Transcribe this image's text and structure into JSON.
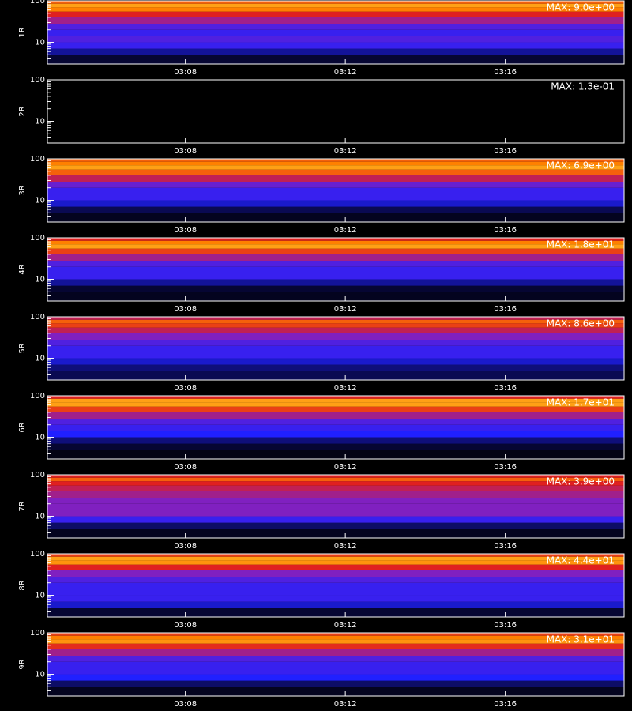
{
  "chart_data": [
    {
      "type": "heatmap",
      "ylabel": "1R",
      "annotation": "MAX: 9.0e+00",
      "xlim": [
        4.55,
        18.97
      ],
      "xticks": [
        {
          "value": 8,
          "label": "03:08"
        },
        {
          "value": 12,
          "label": "03:12"
        },
        {
          "value": 16,
          "label": "03:16"
        }
      ],
      "ylim": [
        3,
        100
      ],
      "log_y": true,
      "yticks": [
        10,
        100
      ],
      "yminorticks": [
        4,
        5,
        6,
        7,
        8,
        9,
        20,
        30,
        40,
        50,
        60,
        70,
        80,
        90
      ],
      "y_bins": [
        3,
        5,
        7,
        10,
        14,
        20,
        28,
        40,
        55,
        70,
        85,
        100
      ],
      "values": [
        0.05,
        0.15,
        0.3,
        0.35,
        0.3,
        0.35,
        0.5,
        0.6,
        0.75,
        0.8,
        0.7
      ]
    },
    {
      "type": "heatmap",
      "ylabel": "2R",
      "annotation": "MAX: 1.3e-01",
      "xlim": [
        4.55,
        18.97
      ],
      "xticks": [
        {
          "value": 8,
          "label": "03:08"
        },
        {
          "value": 12,
          "label": "03:12"
        },
        {
          "value": 16,
          "label": "03:16"
        }
      ],
      "ylim": [
        3,
        100
      ],
      "log_y": true,
      "yticks": [
        10,
        100
      ],
      "yminorticks": [
        4,
        5,
        6,
        7,
        8,
        9,
        20,
        30,
        40,
        50,
        60,
        70,
        80,
        90
      ],
      "y_bins": [
        3,
        5,
        7,
        10,
        14,
        20,
        28,
        40,
        55,
        70,
        85,
        100
      ],
      "values": [
        0,
        0,
        0,
        0,
        0,
        0,
        0,
        0,
        0,
        0,
        0
      ]
    },
    {
      "type": "heatmap",
      "ylabel": "3R",
      "annotation": "MAX: 6.9e+00",
      "xlim": [
        4.55,
        18.97
      ],
      "xticks": [
        {
          "value": 8,
          "label": "03:08"
        },
        {
          "value": 12,
          "label": "03:12"
        },
        {
          "value": 16,
          "label": "03:16"
        }
      ],
      "ylim": [
        3,
        100
      ],
      "log_y": true,
      "yticks": [
        10,
        100
      ],
      "yminorticks": [
        4,
        5,
        6,
        7,
        8,
        9,
        20,
        30,
        40,
        50,
        60,
        70,
        80,
        90
      ],
      "y_bins": [
        3,
        5,
        7,
        10,
        14,
        20,
        28,
        40,
        55,
        70,
        85,
        100
      ],
      "values": [
        0.03,
        0.08,
        0.2,
        0.3,
        0.3,
        0.4,
        0.55,
        0.7,
        0.8,
        0.75,
        0.7
      ]
    },
    {
      "type": "heatmap",
      "ylabel": "4R",
      "annotation": "MAX: 1.8e+01",
      "xlim": [
        4.55,
        18.97
      ],
      "xticks": [
        {
          "value": 8,
          "label": "03:08"
        },
        {
          "value": 12,
          "label": "03:12"
        },
        {
          "value": 16,
          "label": "03:16"
        }
      ],
      "ylim": [
        3,
        100
      ],
      "log_y": true,
      "yticks": [
        10,
        100
      ],
      "yminorticks": [
        4,
        5,
        6,
        7,
        8,
        9,
        20,
        30,
        40,
        50,
        60,
        70,
        80,
        90
      ],
      "y_bins": [
        3,
        5,
        7,
        10,
        14,
        20,
        28,
        40,
        55,
        70,
        85,
        100
      ],
      "values": [
        0.03,
        0.05,
        0.15,
        0.3,
        0.3,
        0.35,
        0.5,
        0.65,
        0.8,
        0.75,
        0.6
      ]
    },
    {
      "type": "heatmap",
      "ylabel": "5R",
      "annotation": "MAX: 8.6e+00",
      "xlim": [
        4.55,
        18.97
      ],
      "xticks": [
        {
          "value": 8,
          "label": "03:08"
        },
        {
          "value": 12,
          "label": "03:12"
        },
        {
          "value": 16,
          "label": "03:16"
        }
      ],
      "ylim": [
        3,
        100
      ],
      "log_y": true,
      "yticks": [
        10,
        100
      ],
      "yminorticks": [
        4,
        5,
        6,
        7,
        8,
        9,
        20,
        30,
        40,
        50,
        60,
        70,
        80,
        90
      ],
      "y_bins": [
        3,
        5,
        7,
        10,
        14,
        20,
        28,
        40,
        55,
        70,
        85,
        100
      ],
      "values": [
        0.08,
        0.12,
        0.2,
        0.3,
        0.3,
        0.35,
        0.45,
        0.55,
        0.65,
        0.7,
        0.55
      ]
    },
    {
      "type": "heatmap",
      "ylabel": "6R",
      "annotation": "MAX: 1.7e+01",
      "xlim": [
        4.55,
        18.97
      ],
      "xticks": [
        {
          "value": 8,
          "label": "03:08"
        },
        {
          "value": 12,
          "label": "03:12"
        },
        {
          "value": 16,
          "label": "03:16"
        }
      ],
      "ylim": [
        3,
        100
      ],
      "log_y": true,
      "yticks": [
        10,
        100
      ],
      "yminorticks": [
        4,
        5,
        6,
        7,
        8,
        9,
        20,
        30,
        40,
        50,
        60,
        70,
        80,
        90
      ],
      "y_bins": [
        3,
        5,
        7,
        10,
        14,
        20,
        28,
        40,
        55,
        70,
        85,
        100
      ],
      "values": [
        0.02,
        0.05,
        0.12,
        0.25,
        0.3,
        0.35,
        0.5,
        0.65,
        0.8,
        0.8,
        0.6
      ]
    },
    {
      "type": "heatmap",
      "ylabel": "7R",
      "annotation": "MAX: 3.9e+00",
      "xlim": [
        4.55,
        18.97
      ],
      "xticks": [
        {
          "value": 8,
          "label": "03:08"
        },
        {
          "value": 12,
          "label": "03:12"
        },
        {
          "value": 16,
          "label": "03:16"
        }
      ],
      "ylim": [
        3,
        100
      ],
      "log_y": true,
      "yticks": [
        10,
        100
      ],
      "yminorticks": [
        4,
        5,
        6,
        7,
        8,
        9,
        20,
        30,
        40,
        50,
        60,
        70,
        80,
        90
      ],
      "y_bins": [
        3,
        5,
        7,
        10,
        14,
        20,
        28,
        40,
        55,
        70,
        85,
        100
      ],
      "values": [
        0.03,
        0.1,
        0.3,
        0.45,
        0.45,
        0.45,
        0.5,
        0.55,
        0.6,
        0.7,
        0.6
      ]
    },
    {
      "type": "heatmap",
      "ylabel": "8R",
      "annotation": "MAX: 4.4e+01",
      "xlim": [
        4.55,
        18.97
      ],
      "xticks": [
        {
          "value": 8,
          "label": "03:08"
        },
        {
          "value": 12,
          "label": "03:12"
        },
        {
          "value": 16,
          "label": "03:16"
        }
      ],
      "ylim": [
        3,
        100
      ],
      "log_y": true,
      "yticks": [
        10,
        100
      ],
      "yminorticks": [
        4,
        5,
        6,
        7,
        8,
        9,
        20,
        30,
        40,
        50,
        60,
        70,
        80,
        90
      ],
      "y_bins": [
        3,
        5,
        7,
        10,
        14,
        20,
        28,
        40,
        55,
        70,
        85,
        100
      ],
      "values": [
        0.05,
        0.2,
        0.3,
        0.3,
        0.3,
        0.35,
        0.45,
        0.6,
        0.78,
        0.8,
        0.65
      ]
    },
    {
      "type": "heatmap",
      "ylabel": "9R",
      "annotation": "MAX: 3.1e+01",
      "xlim": [
        4.55,
        18.97
      ],
      "xticks": [
        {
          "value": 8,
          "label": "03:08"
        },
        {
          "value": 12,
          "label": "03:12"
        },
        {
          "value": 16,
          "label": "03:16"
        }
      ],
      "ylim": [
        3,
        100
      ],
      "log_y": true,
      "yticks": [
        10,
        100
      ],
      "yminorticks": [
        4,
        5,
        6,
        7,
        8,
        9,
        20,
        30,
        40,
        50,
        60,
        70,
        80,
        90
      ],
      "y_bins": [
        3,
        5,
        7,
        10,
        14,
        20,
        28,
        40,
        55,
        70,
        85,
        100
      ],
      "values": [
        0.03,
        0.1,
        0.25,
        0.3,
        0.3,
        0.35,
        0.5,
        0.62,
        0.78,
        0.75,
        0.65
      ]
    }
  ]
}
